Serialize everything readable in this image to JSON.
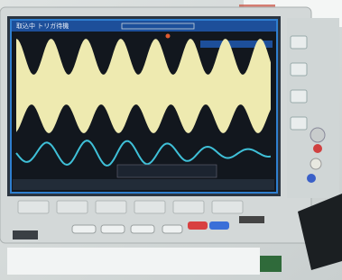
{
  "screen": {
    "status": "取込中 トリガ待機"
  }
}
